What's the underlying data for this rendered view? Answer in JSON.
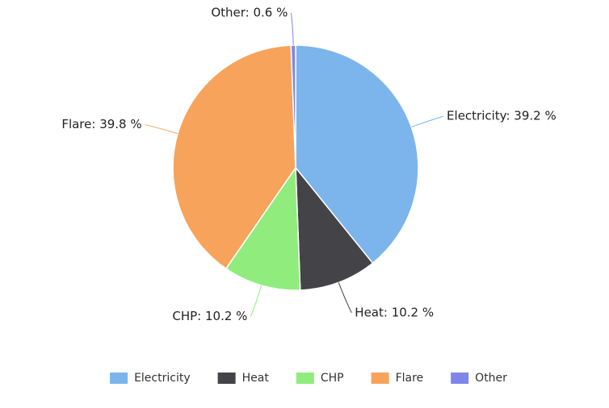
{
  "chart_data": {
    "type": "pie",
    "categories": [
      "Electricity",
      "Heat",
      "CHP",
      "Flare",
      "Other"
    ],
    "values": [
      39.2,
      10.2,
      10.2,
      39.8,
      0.6
    ],
    "value_labels": [
      "Electricity: 39.2 %",
      "Heat: 10.2 %",
      "CHP: 10.2 %",
      "Flare: 39.8 %",
      "Other: 0.6 %"
    ],
    "colors": [
      "#7cb5ec",
      "#434348",
      "#90ed7d",
      "#f7a35c",
      "#8085e9"
    ],
    "legend": "bottom"
  }
}
